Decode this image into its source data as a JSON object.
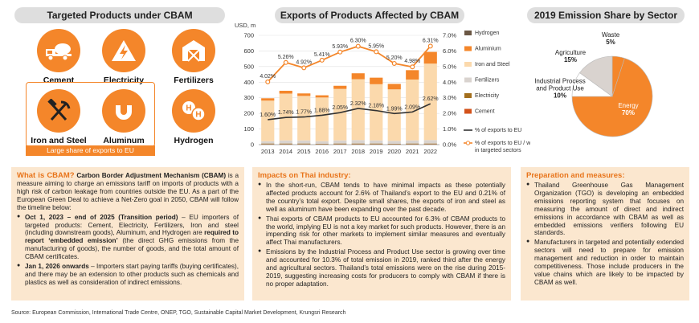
{
  "targeted": {
    "title": "Targeted Products under CBAM",
    "tiles": [
      "Cement",
      "Electricity",
      "Fertilizers",
      "Iron and Steel",
      "Aluminum",
      "Hydrogen"
    ],
    "banner": "Large share of exports to EU"
  },
  "exports_chart": {
    "title": "Exports of Products Affected by CBAM",
    "unit": "USD, m"
  },
  "pie_chart": {
    "title": "2019 Emission Share by Sector"
  },
  "chart_data": [
    {
      "type": "bar",
      "title": "Exports of Products Affected by CBAM",
      "ylabel": "USD, m",
      "categories": [
        "2013",
        "2014",
        "2015",
        "2016",
        "2017",
        "2018",
        "2019",
        "2020",
        "2021",
        "2022"
      ],
      "ylim": [
        0,
        700
      ],
      "y2lim": [
        0,
        0.07
      ],
      "series": [
        {
          "name": "Hydrogen",
          "color": "#6b5744",
          "values": [
            0,
            0,
            0,
            0,
            0,
            0,
            0,
            0,
            0,
            0
          ]
        },
        {
          "name": "Aluminium",
          "color": "#f4862a",
          "values": [
            15,
            18,
            16,
            14,
            20,
            38,
            42,
            35,
            60,
            75
          ]
        },
        {
          "name": "Iron and Steel",
          "color": "#fbd9ac",
          "values": [
            260,
            300,
            285,
            280,
            330,
            390,
            360,
            330,
            390,
            490
          ]
        },
        {
          "name": "Fertilizers",
          "color": "#d9d3cf",
          "values": [
            15,
            20,
            20,
            16,
            20,
            22,
            20,
            18,
            20,
            22
          ]
        },
        {
          "name": "Electricity",
          "color": "#a36f1d",
          "values": [
            4,
            4,
            4,
            3,
            4,
            4,
            4,
            3,
            4,
            4
          ]
        },
        {
          "name": "Cement",
          "color": "#d3521a",
          "values": [
            3,
            3,
            3,
            3,
            3,
            3,
            3,
            3,
            3,
            3
          ]
        },
        {
          "name": "% of exports to EU",
          "type": "line",
          "axis": "right",
          "color": "#333333",
          "values": [
            0.016,
            0.0174,
            0.0177,
            0.0188,
            0.0205,
            0.0232,
            0.0218,
            0.0199,
            0.0209,
            0.0262
          ],
          "labels": [
            "1.60%",
            "1.74%",
            "1.77%",
            "1.88%",
            "2.05%",
            "2.32%",
            "2.18%",
            "1.99%",
            "2.09%",
            "2.62%"
          ]
        },
        {
          "name": "% of exports to EU / world in targeted sectors",
          "type": "line",
          "axis": "right",
          "color": "#f4862a",
          "values": [
            0.0402,
            0.0526,
            0.0492,
            0.0541,
            0.0593,
            0.063,
            0.0595,
            0.052,
            0.0498,
            0.0631
          ],
          "labels": [
            "4.02%",
            "5.26%",
            "4.92%",
            "5.41%",
            "5.93%",
            "6.30%",
            "5.95%",
            "5.20%",
            "4.98%",
            "6.31%"
          ]
        }
      ],
      "yticks": [
        "0",
        "100",
        "200",
        "300",
        "400",
        "500",
        "600",
        "700"
      ],
      "y2ticks": [
        "0.0%",
        "1.0%",
        "2.0%",
        "3.0%",
        "4.0%",
        "5.0%",
        "6.0%",
        "7.0%"
      ]
    },
    {
      "type": "pie",
      "title": "2019 Emission Share by Sector",
      "slices": [
        {
          "name": "Energy",
          "value": 70,
          "label": "70%",
          "color": "#f4862a"
        },
        {
          "name": "Industrial Process and Product Use",
          "value": 10,
          "label": "10%",
          "color": "#ffffff"
        },
        {
          "name": "Agriculture",
          "value": 15,
          "label": "15%",
          "color": "#d9d3cf"
        },
        {
          "name": "Waste",
          "value": 5,
          "label": "5%",
          "color": "#f4862a"
        }
      ]
    }
  ],
  "panels": {
    "cbam": {
      "title": "What is CBAM?",
      "title_bold": "Carbon Border Adjustment Mechanism (CBAM)",
      "intro": "is a measure aiming to charge an emissions tariff on imports of products with a high risk of carbon leakage from countries outside the EU. As a part of the European Green Deal to achieve a Net-Zero goal in 2050, CBAM will follow the timeline below:",
      "b1_bold": "Oct 1, 2023 – end of 2025 (Transition period)",
      "b1_text": "– EU importers of targeted products: Cement, Electricity, Fertilizers, Iron and steel (including downstream goods), Aluminum, and Hydrogen are",
      "b1_bold2": "required to report ‘embedded emission’",
      "b1_text2": "(the direct GHG emissions from the manufacturing of goods), the number of goods, and the total amount of CBAM certificates.",
      "b2_bold": "Jan 1, 2026 onwards",
      "b2_text": "– Importers start paying tariffs (buying certificates), and there may be an extension to other products such as chemicals and plastics as well as consideration of indirect emissions."
    },
    "impacts": {
      "title": "Impacts on Thai industry:",
      "b1": "In the short-run, CBAM tends to have minimal impacts as these potentially affected products account for 2.6% of Thailand’s export to the EU and 0.21% of the country’s total export. Despite small shares, the exports of iron and steel as well as aluminum have been expanding over the past decade.",
      "b2": "Thai exports of CBAM products to EU accounted for 6.3% of CBAM products to the world, implying EU is not a key market for such products. However, there is an impending risk for other markets to implement similar measures and eventually affect Thai manufacturers.",
      "b3": "Emissions by the Industrial Process and Product Use sector is growing over time and accounted for 10.3% of total emission in 2019, ranked third after the energy and agricultural sectors. Thailand’s total emissions were on the rise during 2015-2019, suggesting increasing costs for producers to comply with CBAM if there is no proper adaptation."
    },
    "prep": {
      "title": "Preparation and measures:",
      "b1": "Thailand Greenhouse Gas Management Organization (TGO) is developing an embedded emissions reporting system that focuses on measuring the amount of direct and indirect emissions in accordance with CBAM as well as embedded emissions verifiers following EU standards.",
      "b2": "Manufacturers in targeted and potentially extended sectors will need to prepare for emission management and reduction in order to maintain competitiveness. Those include producers in the value chains which are likely to be impacted by CBAM as well."
    }
  },
  "source": "Source: European Commission, International Trade Centre, ONEP, TGO, Sustainable Capital Market Development, Krungsri Research"
}
